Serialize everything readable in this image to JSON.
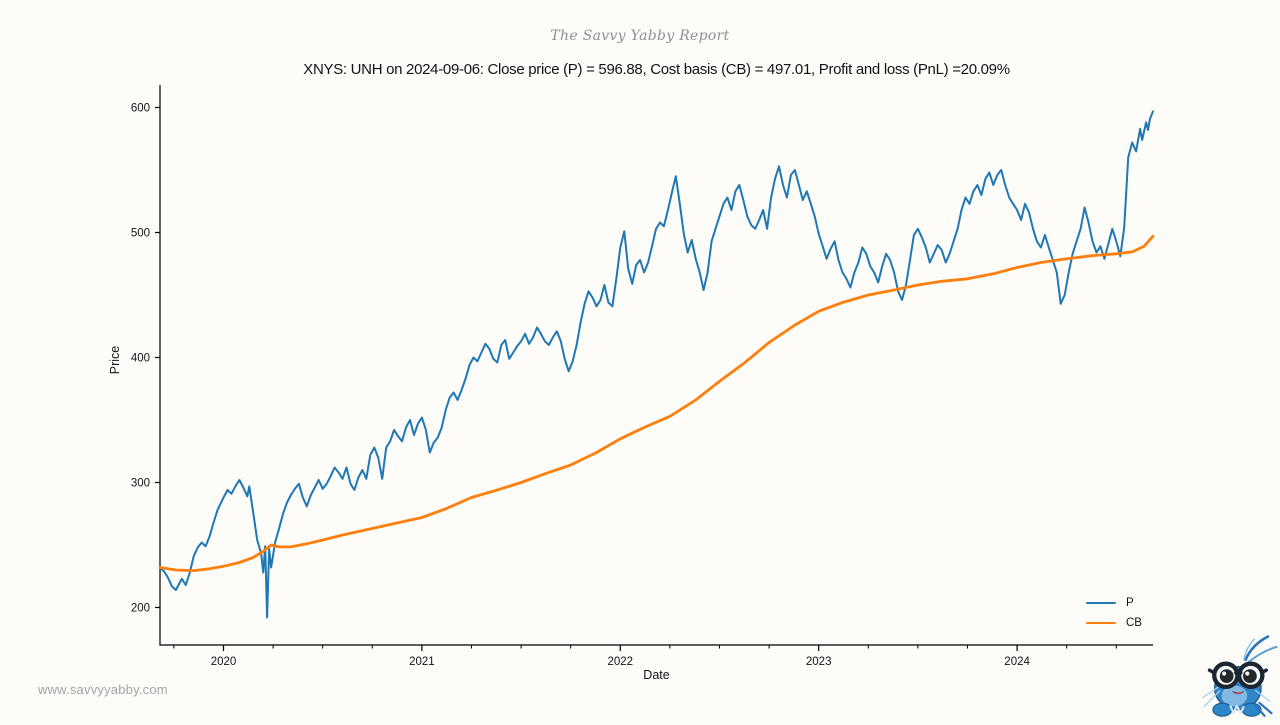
{
  "brand": {
    "report_title": "The Savvy Yabby Report",
    "website": "www.savvyyabby.com"
  },
  "chart_data": {
    "type": "line",
    "title": "XNYS: UNH on 2024-09-06: Close price (P) = 596.88, Cost basis (CB) = 497.01, Profit and loss (PnL) =20.09%",
    "xlabel": "Date",
    "ylabel": "Price",
    "x_tick_years": [
      2020,
      2021,
      2022,
      2023,
      2024
    ],
    "y_ticks": [
      200,
      300,
      400,
      500,
      600
    ],
    "x_range_years": [
      2019.68,
      2024.685
    ],
    "y_range": [
      170,
      618
    ],
    "minor_tick_step_years": 0.25,
    "grid": false,
    "legend_position": "lower right",
    "axis_color": "#000000",
    "series": [
      {
        "name": "P",
        "color": "#1f77b4",
        "width": 2,
        "points": [
          [
            2019.68,
            232
          ],
          [
            2019.7,
            229
          ],
          [
            2019.72,
            224
          ],
          [
            2019.74,
            217
          ],
          [
            2019.76,
            214
          ],
          [
            2019.79,
            223
          ],
          [
            2019.81,
            218
          ],
          [
            2019.83,
            228
          ],
          [
            2019.85,
            241
          ],
          [
            2019.87,
            248
          ],
          [
            2019.89,
            252
          ],
          [
            2019.91,
            249
          ],
          [
            2019.93,
            257
          ],
          [
            2019.95,
            268
          ],
          [
            2019.97,
            278
          ],
          [
            2020.0,
            288
          ],
          [
            2020.02,
            294
          ],
          [
            2020.04,
            291
          ],
          [
            2020.06,
            297
          ],
          [
            2020.08,
            302
          ],
          [
            2020.1,
            296
          ],
          [
            2020.12,
            289
          ],
          [
            2020.13,
            297
          ],
          [
            2020.15,
            276
          ],
          [
            2020.17,
            254
          ],
          [
            2020.19,
            243
          ],
          [
            2020.2,
            228
          ],
          [
            2020.21,
            249
          ],
          [
            2020.22,
            192
          ],
          [
            2020.23,
            247
          ],
          [
            2020.24,
            232
          ],
          [
            2020.26,
            252
          ],
          [
            2020.28,
            263
          ],
          [
            2020.3,
            275
          ],
          [
            2020.32,
            284
          ],
          [
            2020.34,
            290
          ],
          [
            2020.36,
            295
          ],
          [
            2020.38,
            299
          ],
          [
            2020.4,
            288
          ],
          [
            2020.42,
            281
          ],
          [
            2020.44,
            290
          ],
          [
            2020.46,
            296
          ],
          [
            2020.48,
            302
          ],
          [
            2020.5,
            295
          ],
          [
            2020.52,
            299
          ],
          [
            2020.54,
            305
          ],
          [
            2020.56,
            312
          ],
          [
            2020.58,
            308
          ],
          [
            2020.6,
            303
          ],
          [
            2020.62,
            312
          ],
          [
            2020.64,
            299
          ],
          [
            2020.66,
            294
          ],
          [
            2020.68,
            304
          ],
          [
            2020.7,
            310
          ],
          [
            2020.72,
            303
          ],
          [
            2020.74,
            322
          ],
          [
            2020.76,
            328
          ],
          [
            2020.78,
            320
          ],
          [
            2020.8,
            303
          ],
          [
            2020.82,
            328
          ],
          [
            2020.84,
            333
          ],
          [
            2020.86,
            342
          ],
          [
            2020.88,
            337
          ],
          [
            2020.9,
            333
          ],
          [
            2020.92,
            344
          ],
          [
            2020.94,
            350
          ],
          [
            2020.96,
            338
          ],
          [
            2020.98,
            347
          ],
          [
            2021.0,
            352
          ],
          [
            2021.02,
            342
          ],
          [
            2021.04,
            324
          ],
          [
            2021.06,
            332
          ],
          [
            2021.08,
            336
          ],
          [
            2021.1,
            344
          ],
          [
            2021.12,
            358
          ],
          [
            2021.14,
            368
          ],
          [
            2021.16,
            372
          ],
          [
            2021.18,
            366
          ],
          [
            2021.2,
            374
          ],
          [
            2021.22,
            383
          ],
          [
            2021.24,
            394
          ],
          [
            2021.26,
            400
          ],
          [
            2021.28,
            397
          ],
          [
            2021.3,
            404
          ],
          [
            2021.32,
            411
          ],
          [
            2021.34,
            407
          ],
          [
            2021.36,
            399
          ],
          [
            2021.38,
            396
          ],
          [
            2021.4,
            410
          ],
          [
            2021.42,
            414
          ],
          [
            2021.44,
            399
          ],
          [
            2021.46,
            404
          ],
          [
            2021.48,
            409
          ],
          [
            2021.5,
            413
          ],
          [
            2021.52,
            419
          ],
          [
            2021.54,
            411
          ],
          [
            2021.56,
            416
          ],
          [
            2021.58,
            424
          ],
          [
            2021.6,
            419
          ],
          [
            2021.62,
            413
          ],
          [
            2021.64,
            410
          ],
          [
            2021.66,
            416
          ],
          [
            2021.68,
            421
          ],
          [
            2021.7,
            413
          ],
          [
            2021.72,
            399
          ],
          [
            2021.74,
            389
          ],
          [
            2021.76,
            397
          ],
          [
            2021.78,
            410
          ],
          [
            2021.8,
            428
          ],
          [
            2021.82,
            443
          ],
          [
            2021.84,
            453
          ],
          [
            2021.86,
            448
          ],
          [
            2021.88,
            441
          ],
          [
            2021.9,
            446
          ],
          [
            2021.92,
            458
          ],
          [
            2021.94,
            444
          ],
          [
            2021.96,
            441
          ],
          [
            2021.98,
            463
          ],
          [
            2022.0,
            488
          ],
          [
            2022.02,
            501
          ],
          [
            2022.04,
            471
          ],
          [
            2022.06,
            459
          ],
          [
            2022.08,
            474
          ],
          [
            2022.1,
            478
          ],
          [
            2022.12,
            468
          ],
          [
            2022.14,
            476
          ],
          [
            2022.16,
            489
          ],
          [
            2022.18,
            503
          ],
          [
            2022.2,
            508
          ],
          [
            2022.22,
            505
          ],
          [
            2022.24,
            518
          ],
          [
            2022.26,
            532
          ],
          [
            2022.28,
            545
          ],
          [
            2022.3,
            523
          ],
          [
            2022.32,
            499
          ],
          [
            2022.34,
            484
          ],
          [
            2022.36,
            494
          ],
          [
            2022.38,
            479
          ],
          [
            2022.4,
            468
          ],
          [
            2022.42,
            454
          ],
          [
            2022.44,
            468
          ],
          [
            2022.46,
            493
          ],
          [
            2022.48,
            503
          ],
          [
            2022.5,
            513
          ],
          [
            2022.52,
            523
          ],
          [
            2022.54,
            528
          ],
          [
            2022.56,
            518
          ],
          [
            2022.58,
            533
          ],
          [
            2022.6,
            538
          ],
          [
            2022.62,
            526
          ],
          [
            2022.64,
            513
          ],
          [
            2022.66,
            506
          ],
          [
            2022.68,
            503
          ],
          [
            2022.7,
            510
          ],
          [
            2022.72,
            518
          ],
          [
            2022.74,
            503
          ],
          [
            2022.76,
            528
          ],
          [
            2022.78,
            543
          ],
          [
            2022.8,
            553
          ],
          [
            2022.82,
            538
          ],
          [
            2022.84,
            528
          ],
          [
            2022.86,
            546
          ],
          [
            2022.88,
            550
          ],
          [
            2022.9,
            538
          ],
          [
            2022.92,
            526
          ],
          [
            2022.94,
            533
          ],
          [
            2022.96,
            523
          ],
          [
            2022.98,
            513
          ],
          [
            2023.0,
            499
          ],
          [
            2023.02,
            489
          ],
          [
            2023.04,
            479
          ],
          [
            2023.06,
            487
          ],
          [
            2023.08,
            493
          ],
          [
            2023.1,
            478
          ],
          [
            2023.12,
            468
          ],
          [
            2023.14,
            463
          ],
          [
            2023.16,
            456
          ],
          [
            2023.18,
            468
          ],
          [
            2023.2,
            476
          ],
          [
            2023.22,
            488
          ],
          [
            2023.24,
            483
          ],
          [
            2023.26,
            473
          ],
          [
            2023.28,
            468
          ],
          [
            2023.3,
            460
          ],
          [
            2023.32,
            473
          ],
          [
            2023.34,
            483
          ],
          [
            2023.36,
            478
          ],
          [
            2023.38,
            468
          ],
          [
            2023.4,
            453
          ],
          [
            2023.42,
            446
          ],
          [
            2023.44,
            458
          ],
          [
            2023.46,
            478
          ],
          [
            2023.48,
            498
          ],
          [
            2023.5,
            503
          ],
          [
            2023.52,
            496
          ],
          [
            2023.54,
            488
          ],
          [
            2023.56,
            476
          ],
          [
            2023.58,
            483
          ],
          [
            2023.6,
            490
          ],
          [
            2023.62,
            486
          ],
          [
            2023.64,
            476
          ],
          [
            2023.66,
            483
          ],
          [
            2023.68,
            493
          ],
          [
            2023.7,
            503
          ],
          [
            2023.72,
            518
          ],
          [
            2023.74,
            528
          ],
          [
            2023.76,
            523
          ],
          [
            2023.78,
            533
          ],
          [
            2023.8,
            538
          ],
          [
            2023.82,
            530
          ],
          [
            2023.84,
            543
          ],
          [
            2023.86,
            548
          ],
          [
            2023.88,
            538
          ],
          [
            2023.9,
            546
          ],
          [
            2023.92,
            550
          ],
          [
            2023.94,
            538
          ],
          [
            2023.96,
            528
          ],
          [
            2023.98,
            523
          ],
          [
            2024.0,
            518
          ],
          [
            2024.02,
            510
          ],
          [
            2024.04,
            523
          ],
          [
            2024.06,
            516
          ],
          [
            2024.08,
            503
          ],
          [
            2024.1,
            493
          ],
          [
            2024.12,
            488
          ],
          [
            2024.14,
            498
          ],
          [
            2024.16,
            488
          ],
          [
            2024.18,
            478
          ],
          [
            2024.2,
            468
          ],
          [
            2024.22,
            443
          ],
          [
            2024.24,
            450
          ],
          [
            2024.26,
            468
          ],
          [
            2024.28,
            483
          ],
          [
            2024.3,
            493
          ],
          [
            2024.32,
            503
          ],
          [
            2024.34,
            520
          ],
          [
            2024.36,
            508
          ],
          [
            2024.38,
            493
          ],
          [
            2024.4,
            484
          ],
          [
            2024.42,
            489
          ],
          [
            2024.44,
            479
          ],
          [
            2024.46,
            491
          ],
          [
            2024.48,
            503
          ],
          [
            2024.5,
            493
          ],
          [
            2024.52,
            481
          ],
          [
            2024.54,
            504
          ],
          [
            2024.56,
            560
          ],
          [
            2024.58,
            572
          ],
          [
            2024.6,
            565
          ],
          [
            2024.62,
            583
          ],
          [
            2024.63,
            574
          ],
          [
            2024.65,
            588
          ],
          [
            2024.66,
            582
          ],
          [
            2024.67,
            591
          ],
          [
            2024.685,
            596.88
          ]
        ]
      },
      {
        "name": "CB",
        "color": "#ff7f0e",
        "width": 2.8,
        "points": [
          [
            2019.68,
            232
          ],
          [
            2019.76,
            230
          ],
          [
            2019.85,
            229.5
          ],
          [
            2019.93,
            231
          ],
          [
            2020.0,
            233
          ],
          [
            2020.08,
            236
          ],
          [
            2020.15,
            240
          ],
          [
            2020.2,
            245
          ],
          [
            2020.24,
            250
          ],
          [
            2020.28,
            248.5
          ],
          [
            2020.34,
            248.5
          ],
          [
            2020.42,
            251
          ],
          [
            2020.5,
            254
          ],
          [
            2020.6,
            258
          ],
          [
            2020.7,
            261.5
          ],
          [
            2020.8,
            265
          ],
          [
            2020.9,
            268.5
          ],
          [
            2021.0,
            272
          ],
          [
            2021.12,
            279
          ],
          [
            2021.25,
            288
          ],
          [
            2021.38,
            294
          ],
          [
            2021.5,
            300
          ],
          [
            2021.62,
            307
          ],
          [
            2021.75,
            314
          ],
          [
            2021.88,
            324
          ],
          [
            2022.0,
            335
          ],
          [
            2022.12,
            344
          ],
          [
            2022.25,
            353
          ],
          [
            2022.38,
            366
          ],
          [
            2022.5,
            381
          ],
          [
            2022.62,
            395
          ],
          [
            2022.75,
            412
          ],
          [
            2022.88,
            426
          ],
          [
            2023.0,
            437
          ],
          [
            2023.12,
            444
          ],
          [
            2023.25,
            450
          ],
          [
            2023.38,
            454
          ],
          [
            2023.5,
            458
          ],
          [
            2023.62,
            461
          ],
          [
            2023.75,
            463
          ],
          [
            2023.88,
            467
          ],
          [
            2024.0,
            472
          ],
          [
            2024.12,
            476
          ],
          [
            2024.25,
            479
          ],
          [
            2024.38,
            481.5
          ],
          [
            2024.5,
            483
          ],
          [
            2024.58,
            484.5
          ],
          [
            2024.64,
            489
          ],
          [
            2024.685,
            497.01
          ]
        ]
      }
    ]
  }
}
